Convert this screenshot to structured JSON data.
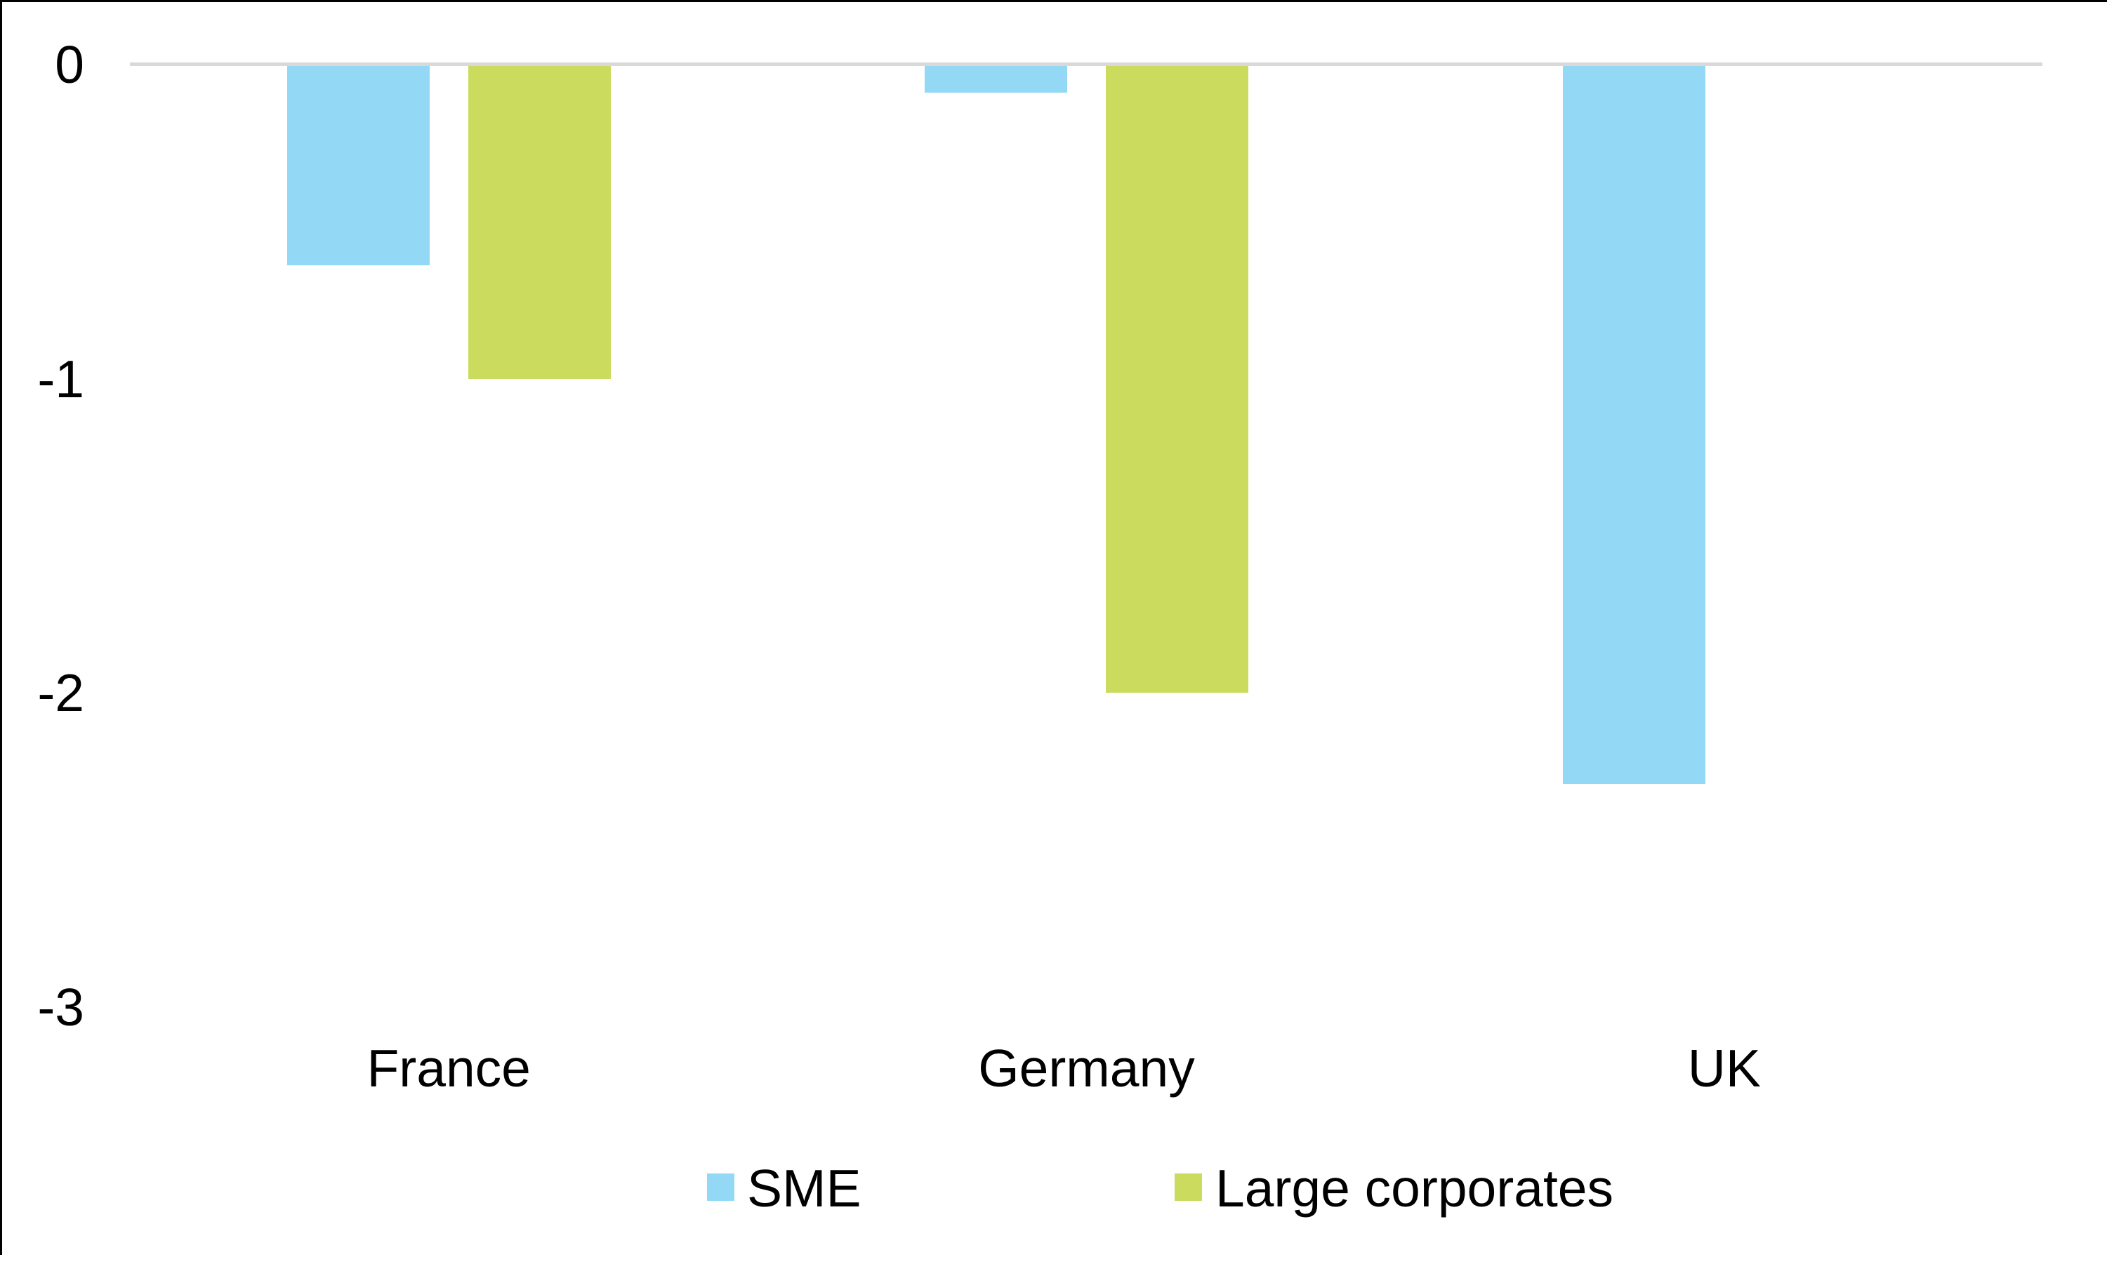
{
  "chart_data": {
    "type": "bar",
    "orientation": "vertical-negative",
    "categories": [
      "France",
      "Germany",
      "UK"
    ],
    "series": [
      {
        "name": "SME",
        "color": "#93D9F6",
        "values": [
          -0.64,
          -0.09,
          -2.29
        ]
      },
      {
        "name": "Large corporates",
        "color": "#CBDB5E",
        "values": [
          -1.0,
          -2.0,
          null
        ]
      }
    ],
    "title": "",
    "xlabel": "",
    "ylabel": "",
    "ylim": [
      -3,
      0
    ],
    "yticks": [
      0,
      -1,
      -2,
      -3
    ],
    "grid": "zero-line-only",
    "zero_line_color": "#D9D9D9",
    "legend_position": "bottom",
    "text_color": "#000000",
    "frame": "top-and-left-black-border"
  }
}
